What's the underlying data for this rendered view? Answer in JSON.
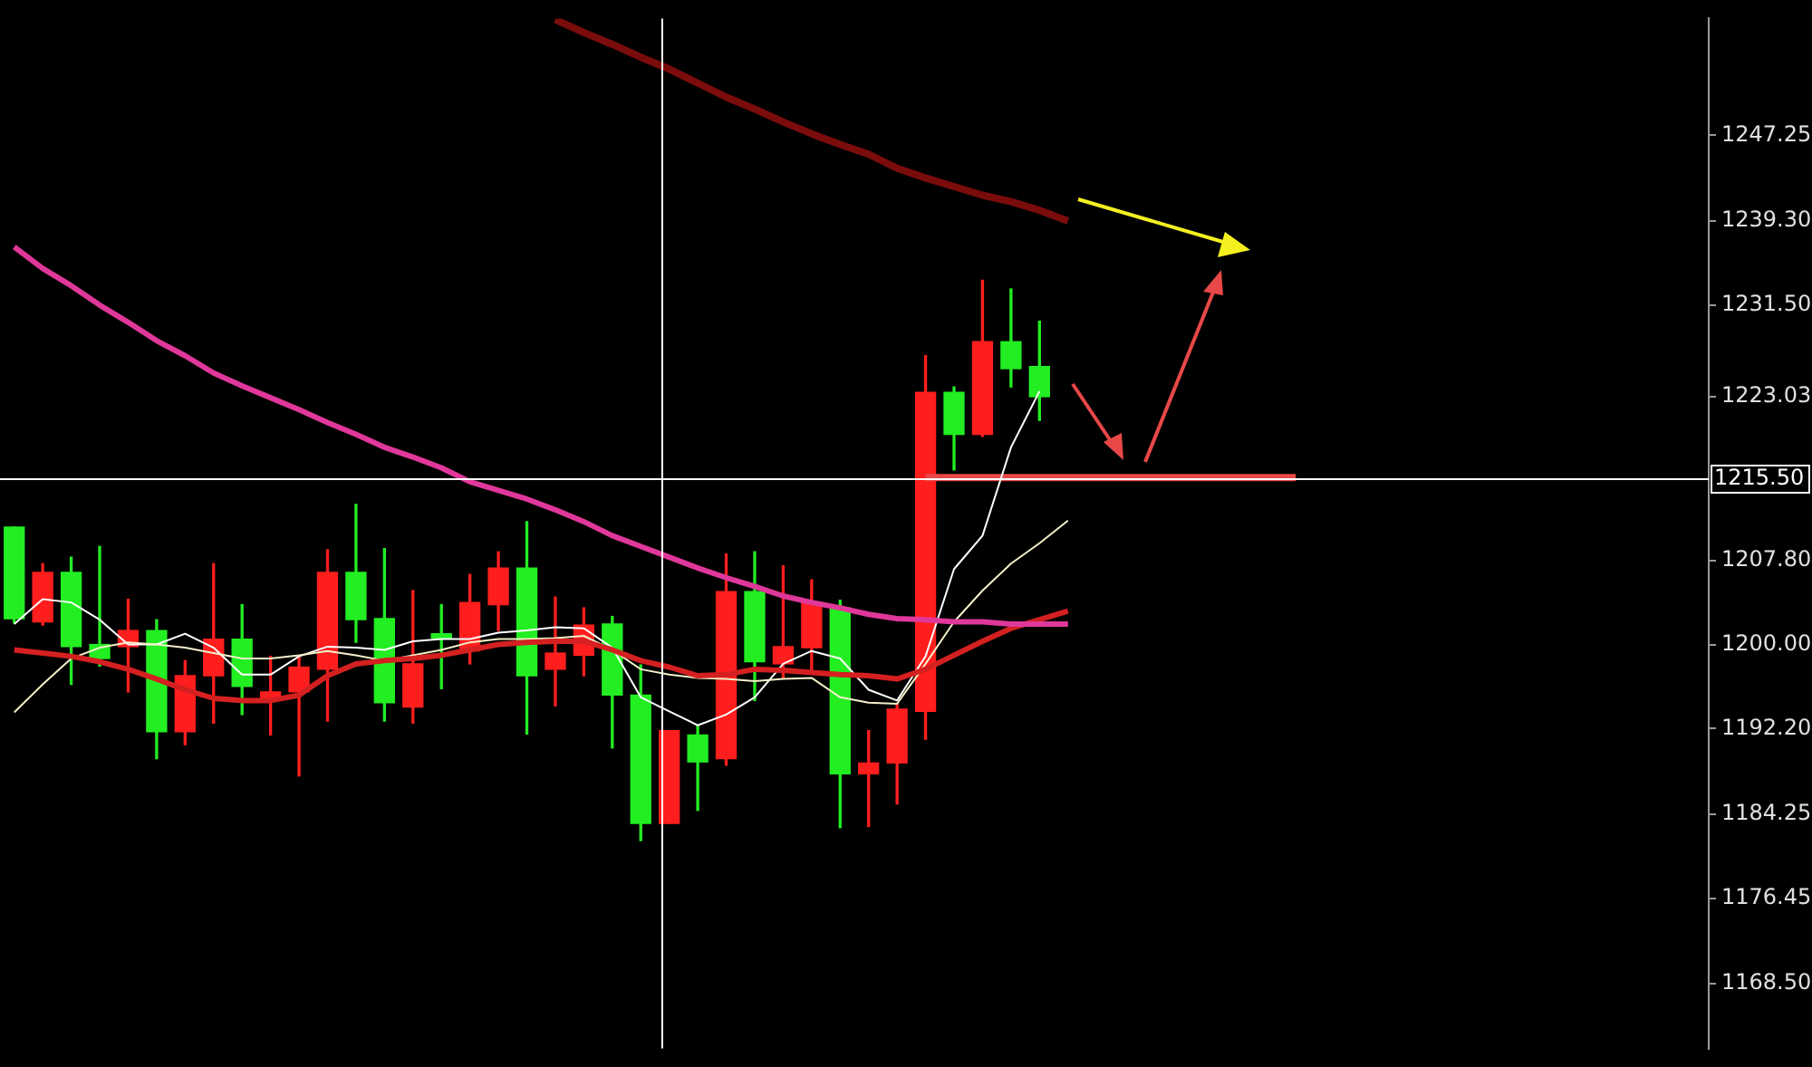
{
  "chart_data": {
    "type": "candlestick",
    "tick_labels": "y",
    "categories": [
      null,
      null,
      null,
      null,
      null,
      null,
      null,
      null,
      null,
      null,
      null,
      null,
      null,
      null,
      null,
      null,
      null,
      null,
      null,
      null,
      null,
      null,
      null,
      null,
      null,
      null,
      null,
      null,
      null,
      null,
      null,
      null,
      null,
      null,
      null,
      null,
      null,
      null,
      null,
      null,
      null,
      null,
      null,
      null,
      null,
      null,
      null,
      null,
      null,
      null,
      null,
      null,
      null,
      null,
      null,
      null,
      null,
      null,
      null,
      null
    ],
    "ohlc": [
      [
        1210.9,
        1210.9,
        1202.0,
        1202.4
      ],
      [
        1202.1,
        1207.5,
        1201.8,
        1206.7
      ],
      [
        1206.7,
        1208.1,
        1196.3,
        1199.8
      ],
      [
        1200.0,
        1209.1,
        1198.0,
        1198.7
      ],
      [
        1199.8,
        1204.2,
        1195.6,
        1201.3
      ],
      [
        1201.3,
        1202.3,
        1189.4,
        1191.9
      ],
      [
        1191.9,
        1198.5,
        1190.7,
        1197.1
      ],
      [
        1197.1,
        1207.5,
        1192.7,
        1200.5
      ],
      [
        1200.5,
        1203.7,
        1193.5,
        1196.1
      ],
      [
        1195.0,
        1198.9,
        1191.6,
        1195.6
      ],
      [
        1195.6,
        1198.9,
        1187.8,
        1197.9
      ],
      [
        1197.7,
        1208.8,
        1192.9,
        1206.7
      ],
      [
        1206.7,
        1213.0,
        1200.2,
        1202.3
      ],
      [
        1202.4,
        1208.9,
        1192.9,
        1194.6
      ],
      [
        1194.2,
        1205.0,
        1192.7,
        1198.2
      ],
      [
        1201.0,
        1203.7,
        1195.9,
        1200.6
      ],
      [
        1199.4,
        1206.5,
        1198.2,
        1203.9
      ],
      [
        1203.7,
        1208.6,
        1201.3,
        1207.1
      ],
      [
        1207.1,
        1211.4,
        1191.7,
        1197.1
      ],
      [
        1197.7,
        1204.4,
        1194.3,
        1199.2
      ],
      [
        1199.0,
        1203.4,
        1197.1,
        1201.8
      ],
      [
        1201.9,
        1202.6,
        1190.4,
        1195.3
      ],
      [
        1195.3,
        1198.1,
        1181.8,
        1183.4
      ],
      [
        1183.4,
        1192.0,
        1183.4,
        1192.0
      ],
      [
        1191.6,
        1192.5,
        1184.6,
        1189.1
      ],
      [
        1189.4,
        1208.4,
        1188.8,
        1204.9
      ],
      [
        1204.9,
        1208.6,
        1194.8,
        1198.4
      ],
      [
        1198.2,
        1207.3,
        1196.9,
        1199.8
      ],
      [
        1199.7,
        1206.0,
        1197.6,
        1203.9
      ],
      [
        1203.4,
        1204.1,
        1183.0,
        1188.0
      ],
      [
        1188.0,
        1192.0,
        1183.1,
        1189.0
      ],
      [
        1189.0,
        1194.5,
        1185.2,
        1194.0
      ],
      [
        1193.8,
        1226.8,
        1191.2,
        1223.4
      ],
      [
        1223.4,
        1223.9,
        1216.2,
        1219.5
      ],
      [
        1219.5,
        1233.8,
        1219.3,
        1228.1
      ],
      [
        1228.1,
        1233.0,
        1223.9,
        1225.6
      ],
      [
        1225.8,
        1230.0,
        1220.8,
        1223.0
      ],
      null,
      null,
      null,
      null,
      null,
      null,
      null,
      null,
      null,
      null,
      null,
      null,
      null,
      null,
      null,
      null,
      null,
      null,
      null,
      null,
      null,
      null,
      null
    ],
    "colors": [
      "#22ee22",
      "#ff1e1e",
      "#22ee22",
      "#22ee22",
      "#ff1e1e",
      "#22ee22",
      "#ff1e1e",
      "#ff1e1e",
      "#22ee22",
      "#ff1e1e",
      "#ff1e1e",
      "#ff1e1e",
      "#22ee22",
      "#22ee22",
      "#ff1e1e",
      "#22ee22",
      "#ff1e1e",
      "#ff1e1e",
      "#22ee22",
      "#ff1e1e",
      "#ff1e1e",
      "#22ee22",
      "#22ee22",
      "#ff1e1e",
      "#22ee22",
      "#ff1e1e",
      "#22ee22",
      "#ff1e1e",
      "#ff1e1e",
      "#22ee22",
      "#ff1e1e",
      "#ff1e1e",
      "#ff1e1e",
      "#22ee22",
      "#ff1e1e",
      "#22ee22",
      "#22ee22",
      null,
      null,
      null,
      null,
      null,
      null,
      null,
      null,
      null,
      null,
      null,
      null,
      null,
      null,
      null,
      null,
      null,
      null,
      null,
      null,
      null,
      null,
      null
    ],
    "series": [
      {
        "type": "line",
        "color": "#7a0c0c",
        "values": [
          null,
          null,
          null,
          null,
          null,
          null,
          null,
          null,
          null,
          null,
          null,
          null,
          null,
          null,
          null,
          null,
          null,
          null,
          null,
          1258.0,
          1256.8,
          1255.7,
          1254.5,
          1253.4,
          1252.1,
          1250.8,
          1249.7,
          1248.5,
          1247.4,
          1246.4,
          1245.5,
          1244.2,
          1243.3,
          1242.5,
          1241.7,
          1241.1,
          1240.3,
          1239.3,
          null,
          null,
          null,
          null,
          null,
          null,
          null,
          null,
          null,
          null,
          null,
          null,
          null,
          null,
          null,
          null,
          null,
          null,
          null,
          null,
          null,
          null
        ]
      },
      {
        "type": "line",
        "color": "#e0389a",
        "values": [
          1236.9,
          1234.9,
          1233.3,
          1231.5,
          1229.9,
          1228.2,
          1226.8,
          1225.2,
          1224.0,
          1222.9,
          1221.8,
          1220.6,
          1219.5,
          1218.3,
          1217.4,
          1216.4,
          1215.1,
          1214.3,
          1213.5,
          1212.5,
          1211.4,
          1210.1,
          1209.1,
          1208.1,
          1207.1,
          1206.2,
          1205.4,
          1204.5,
          1203.9,
          1203.4,
          1202.8,
          1202.4,
          1202.3,
          1202.1,
          1202.1,
          1201.9,
          1201.9,
          1201.9,
          null,
          null,
          null,
          null,
          null,
          null,
          null,
          null,
          null,
          null,
          null,
          null,
          null,
          null,
          null,
          null,
          null,
          null,
          null,
          null,
          null,
          null
        ]
      },
      {
        "type": "line",
        "color": "#d42020",
        "values": [
          1199.5,
          1199.2,
          1198.9,
          1198.4,
          1197.7,
          1196.8,
          1195.8,
          1195.0,
          1194.8,
          1194.8,
          1195.3,
          1197.1,
          1198.2,
          1198.5,
          1198.7,
          1199.0,
          1199.5,
          1200.0,
          1200.2,
          1200.3,
          1200.3,
          1199.5,
          1198.5,
          1197.9,
          1197.1,
          1197.2,
          1197.7,
          1197.6,
          1197.4,
          1197.2,
          1197.1,
          1196.8,
          1197.7,
          1199.0,
          1200.3,
          1201.5,
          1202.3,
          1203.1,
          null,
          null,
          null,
          null,
          null,
          null,
          null,
          null,
          null,
          null,
          null,
          null,
          null,
          null,
          null,
          null,
          null,
          null,
          null,
          null,
          null,
          null
        ]
      },
      {
        "type": "line",
        "color": "#f4f0c8",
        "values": [
          1193.7,
          1196.3,
          1198.7,
          1199.7,
          1200.2,
          1200.0,
          1199.7,
          1199.2,
          1198.7,
          1198.7,
          1199.0,
          1199.4,
          1199.0,
          1198.5,
          1199.0,
          1199.5,
          1200.2,
          1200.5,
          1200.5,
          1200.6,
          1200.8,
          1199.5,
          1197.7,
          1197.2,
          1196.9,
          1196.8,
          1196.6,
          1196.8,
          1196.9,
          1195.1,
          1194.6,
          1194.5,
          1198.2,
          1202.1,
          1205.0,
          1207.5,
          1209.4,
          1211.5,
          null,
          null,
          null,
          null,
          null,
          null,
          null,
          null,
          null,
          null,
          null,
          null,
          null,
          null,
          null,
          null,
          null,
          null,
          null,
          null,
          null,
          null
        ]
      },
      {
        "type": "line",
        "color": "#ffffff",
        "values": [
          1201.9,
          1204.2,
          1203.9,
          1202.3,
          1200.0,
          1200.0,
          1201.0,
          1199.7,
          1197.2,
          1197.2,
          1198.9,
          1199.8,
          1199.7,
          1199.5,
          1200.3,
          1200.5,
          1200.5,
          1201.1,
          1201.3,
          1201.6,
          1201.5,
          1199.7,
          1195.1,
          1193.8,
          1192.5,
          1193.5,
          1195.1,
          1198.2,
          1199.4,
          1198.7,
          1195.8,
          1194.8,
          1198.9,
          1207.0,
          1210.1,
          1218.3,
          1223.5,
          null,
          null,
          null,
          null,
          null,
          null,
          null,
          null,
          null,
          null,
          null,
          null,
          null,
          null,
          null,
          null,
          null,
          null,
          null,
          null,
          null,
          null,
          null
        ]
      },
      {
        "type": "line",
        "color": "#e84848",
        "values": [
          null,
          null,
          null,
          null,
          null,
          null,
          null,
          null,
          null,
          null,
          null,
          null,
          null,
          null,
          null,
          null,
          null,
          null,
          null,
          null,
          null,
          null,
          null,
          null,
          null,
          null,
          null,
          null,
          null,
          null,
          null,
          null,
          1215.5,
          null,
          null,
          null,
          null,
          null,
          null,
          null,
          null,
          null,
          null,
          null,
          null,
          1215.5,
          null,
          null,
          null,
          null,
          null,
          null,
          null,
          null,
          null,
          null,
          null,
          null,
          null,
          null
        ]
      }
    ],
    "ylim": [
      1162.5,
      1258.1
    ],
    "yticks": [
      {
        "value": 1168.5,
        "label": "1168.50"
      },
      {
        "value": 1176.45,
        "label": "1176.45"
      },
      {
        "value": 1184.25,
        "label": "1184.25"
      },
      {
        "value": 1192.2,
        "label": "1192.20"
      },
      {
        "value": 1200,
        "label": "1200.00"
      },
      {
        "value": 1207.8,
        "label": "1207.80"
      },
      {
        "value": 1223.03,
        "label": "1223.03"
      },
      {
        "value": 1231.5,
        "label": "1231.50"
      },
      {
        "value": 1239.3,
        "label": "1239.30"
      },
      {
        "value": 1247.25,
        "label": "1247.25"
      }
    ],
    "ref_lines": [
      {
        "axis": "y",
        "value": 1215.5,
        "label": "1215.50",
        "color": "#ffffff"
      }
    ]
  }
}
